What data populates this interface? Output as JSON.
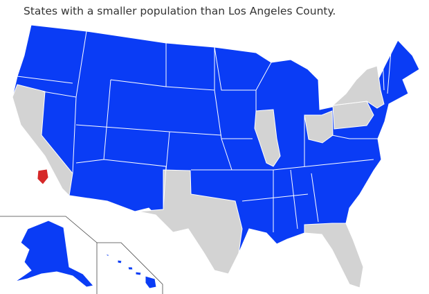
{
  "title": "States with a smaller population than Los Angeles County."
}
